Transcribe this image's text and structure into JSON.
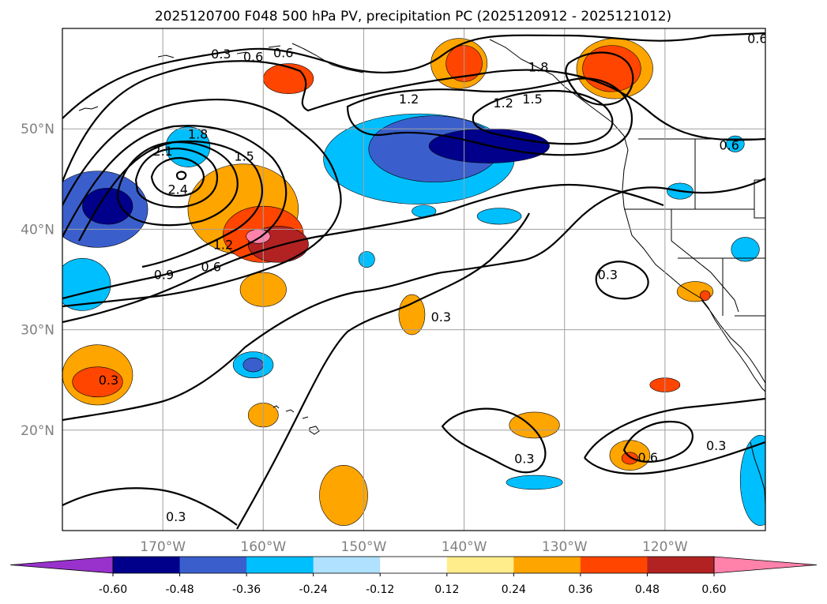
{
  "chart_data": {
    "type": "contour",
    "title": "2025120700 F048 500 hPa PV, precipitation PC (2025120912 - 2025121012)",
    "map": {
      "lon_range": [
        -180,
        -110
      ],
      "lat_range": [
        10,
        60
      ],
      "grid": true,
      "x_ticks": [
        -170,
        -160,
        -150,
        -140,
        -130,
        -120
      ],
      "x_tick_labels": [
        "170°W",
        "160°W",
        "150°W",
        "140°W",
        "130°W",
        "120°W"
      ],
      "y_ticks": [
        20,
        30,
        40,
        50
      ],
      "y_tick_labels": [
        "20°N",
        "30°N",
        "40°N",
        "50°N"
      ]
    },
    "pv_contour_levels": [
      0.3,
      0.6,
      0.9,
      1.2,
      1.5,
      1.8,
      2.1,
      2.4
    ],
    "pv_contour_labels": [
      {
        "text": "0.3",
        "lon": -164.2,
        "lat": 57.5
      },
      {
        "text": "0.6",
        "lon": -161.0,
        "lat": 57.2
      },
      {
        "text": "0.6",
        "lon": -158.0,
        "lat": 57.6
      },
      {
        "text": "2.1",
        "lon": -170.0,
        "lat": 47.8
      },
      {
        "text": "1.8",
        "lon": -166.5,
        "lat": 49.5
      },
      {
        "text": "1.5",
        "lon": -161.9,
        "lat": 47.3
      },
      {
        "text": "2.4",
        "lon": -168.5,
        "lat": 44.0
      },
      {
        "text": "1.2",
        "lon": -164.0,
        "lat": 38.5
      },
      {
        "text": "0.9",
        "lon": -169.9,
        "lat": 35.5
      },
      {
        "text": "0.6",
        "lon": -165.2,
        "lat": 36.3
      },
      {
        "text": "1.2",
        "lon": -145.5,
        "lat": 53.0
      },
      {
        "text": "1.2",
        "lon": -136.1,
        "lat": 52.6
      },
      {
        "text": "1.5",
        "lon": -133.2,
        "lat": 53.0
      },
      {
        "text": "1.8",
        "lon": -132.6,
        "lat": 56.2
      },
      {
        "text": "0.6",
        "lon": -110.8,
        "lat": 59.0
      },
      {
        "text": "0.6",
        "lon": -113.6,
        "lat": 48.4
      },
      {
        "text": "0.3",
        "lon": -125.7,
        "lat": 35.5
      },
      {
        "text": "0.3",
        "lon": -142.3,
        "lat": 31.3
      },
      {
        "text": "0.3",
        "lon": -175.4,
        "lat": 25.0
      },
      {
        "text": "0.3",
        "lon": -134.0,
        "lat": 17.2
      },
      {
        "text": "0.6",
        "lon": -121.7,
        "lat": 17.3
      },
      {
        "text": "0.3",
        "lon": -114.9,
        "lat": 18.5
      },
      {
        "text": "0.3",
        "lon": -168.7,
        "lat": 11.4
      }
    ],
    "colorbar": {
      "ticks": [
        "-0.60",
        "-0.48",
        "-0.36",
        "-0.24",
        "-0.12",
        "0.12",
        "0.24",
        "0.36",
        "0.48",
        "0.60"
      ],
      "level_edges": [
        -0.6,
        -0.48,
        -0.36,
        -0.24,
        -0.12,
        0.12,
        0.24,
        0.36,
        0.48,
        0.6
      ],
      "colors": [
        "#9932cc",
        "#00008b",
        "#3a5fcd",
        "#00bfff",
        "#b0e2ff",
        "#ffffff",
        "#ffec8b",
        "#ffa500",
        "#ff4500",
        "#b22222",
        "#ff82ab"
      ],
      "extend": "both"
    },
    "precip_pc_regions": [
      {
        "lon": -176.5,
        "lat": 42.0,
        "rx": 5.0,
        "ry": 3.8,
        "value": -0.4
      },
      {
        "lon": -175.5,
        "lat": 42.3,
        "rx": 2.5,
        "ry": 1.8,
        "value": -0.52
      },
      {
        "lon": -178.0,
        "lat": 34.5,
        "rx": 2.8,
        "ry": 2.6,
        "value": -0.3
      },
      {
        "lon": -167.5,
        "lat": 48.2,
        "rx": 2.2,
        "ry": 2.0,
        "value": -0.3
      },
      {
        "lon": -162.0,
        "lat": 42.0,
        "rx": 5.5,
        "ry": 4.5,
        "value": 0.3
      },
      {
        "lon": -160.0,
        "lat": 39.5,
        "rx": 4.0,
        "ry": 2.8,
        "value": 0.45
      },
      {
        "lon": -158.5,
        "lat": 38.5,
        "rx": 3.0,
        "ry": 1.8,
        "value": 0.54
      },
      {
        "lon": -160.5,
        "lat": 39.3,
        "rx": 1.2,
        "ry": 0.7,
        "value": 0.65
      },
      {
        "lon": -157.5,
        "lat": 55.0,
        "rx": 2.5,
        "ry": 1.5,
        "value": 0.4
      },
      {
        "lon": -144.5,
        "lat": 47.0,
        "rx": 9.5,
        "ry": 4.5,
        "value": -0.3
      },
      {
        "lon": -143.0,
        "lat": 48.0,
        "rx": 6.5,
        "ry": 3.3,
        "value": -0.4
      },
      {
        "lon": -137.5,
        "lat": 48.3,
        "rx": 6.0,
        "ry": 1.7,
        "value": -0.52
      },
      {
        "lon": -140.5,
        "lat": 56.5,
        "rx": 2.8,
        "ry": 2.5,
        "value": 0.3
      },
      {
        "lon": -140.0,
        "lat": 56.5,
        "rx": 1.8,
        "ry": 1.8,
        "value": 0.4
      },
      {
        "lon": -125.0,
        "lat": 56.0,
        "rx": 3.8,
        "ry": 3.0,
        "value": 0.3
      },
      {
        "lon": -125.3,
        "lat": 56.0,
        "rx": 2.9,
        "ry": 2.3,
        "value": 0.4
      },
      {
        "lon": -160.0,
        "lat": 34.0,
        "rx": 2.3,
        "ry": 1.7,
        "value": 0.3
      },
      {
        "lon": -145.2,
        "lat": 31.5,
        "rx": 1.3,
        "ry": 2.0,
        "value": 0.3
      },
      {
        "lon": -144.0,
        "lat": 41.8,
        "rx": 1.2,
        "ry": 0.6,
        "value": -0.3
      },
      {
        "lon": -136.5,
        "lat": 41.3,
        "rx": 2.2,
        "ry": 0.8,
        "value": -0.3
      },
      {
        "lon": -149.7,
        "lat": 37.0,
        "rx": 0.8,
        "ry": 0.8,
        "value": -0.3
      },
      {
        "lon": -176.5,
        "lat": 25.5,
        "rx": 3.5,
        "ry": 3.0,
        "value": 0.3
      },
      {
        "lon": -176.5,
        "lat": 24.8,
        "rx": 2.5,
        "ry": 1.5,
        "value": 0.4
      },
      {
        "lon": -161.0,
        "lat": 26.5,
        "rx": 2.0,
        "ry": 1.3,
        "value": -0.3
      },
      {
        "lon": -161.0,
        "lat": 26.5,
        "rx": 1.0,
        "ry": 0.7,
        "value": -0.4
      },
      {
        "lon": -160.0,
        "lat": 21.5,
        "rx": 1.5,
        "ry": 1.2,
        "value": 0.3
      },
      {
        "lon": -152.0,
        "lat": 13.5,
        "rx": 2.4,
        "ry": 3.0,
        "value": 0.3
      },
      {
        "lon": -133.0,
        "lat": 20.5,
        "rx": 2.5,
        "ry": 1.3,
        "value": 0.3
      },
      {
        "lon": -133.0,
        "lat": 14.8,
        "rx": 2.8,
        "ry": 0.7,
        "value": -0.3
      },
      {
        "lon": -123.5,
        "lat": 17.5,
        "rx": 2.0,
        "ry": 1.5,
        "value": 0.3
      },
      {
        "lon": -123.5,
        "lat": 17.2,
        "rx": 0.8,
        "ry": 0.6,
        "value": 0.4
      },
      {
        "lon": -120.0,
        "lat": 24.5,
        "rx": 1.5,
        "ry": 0.7,
        "value": 0.4
      },
      {
        "lon": -117.0,
        "lat": 33.8,
        "rx": 1.8,
        "ry": 1.0,
        "value": 0.3
      },
      {
        "lon": -116.0,
        "lat": 33.4,
        "rx": 0.5,
        "ry": 0.5,
        "value": 0.4
      },
      {
        "lon": -112.0,
        "lat": 38.0,
        "rx": 1.4,
        "ry": 1.2,
        "value": -0.3
      },
      {
        "lon": -113.0,
        "lat": 48.5,
        "rx": 0.9,
        "ry": 0.8,
        "value": -0.3
      },
      {
        "lon": -118.5,
        "lat": 43.8,
        "rx": 1.3,
        "ry": 0.8,
        "value": -0.3
      },
      {
        "lon": -110.5,
        "lat": 15.0,
        "rx": 2.0,
        "ry": 4.5,
        "value": -0.3
      }
    ]
  }
}
